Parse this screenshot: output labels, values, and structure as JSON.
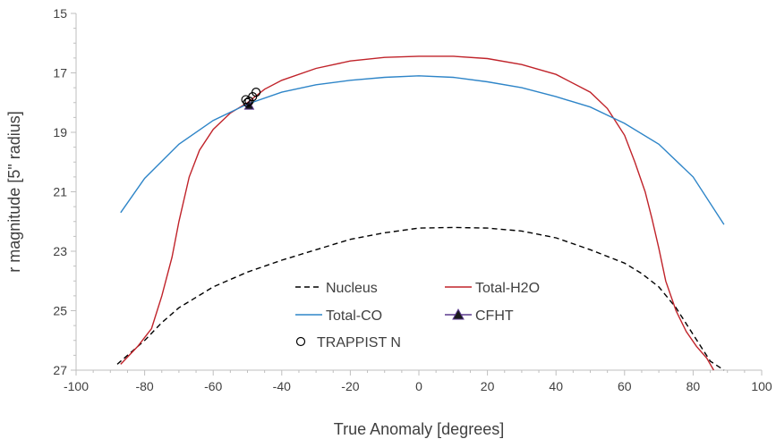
{
  "chart_data": {
    "type": "line",
    "title": "",
    "xlabel": "True Anomaly [degrees]",
    "ylabel": "r magnitude [5\" radius]",
    "xlim": [
      -100,
      100
    ],
    "ylim": [
      15,
      27
    ],
    "y_inverted": true,
    "xticks": [
      -100,
      -80,
      -60,
      -40,
      -20,
      0,
      20,
      40,
      60,
      80,
      100
    ],
    "yticks": [
      15,
      17,
      19,
      21,
      23,
      25,
      27
    ],
    "grid": false,
    "legend_position": "inside-bottom-center",
    "series": [
      {
        "name": "Nucleus",
        "style": "dashed",
        "color": "#000000",
        "x": [
          -88,
          -80,
          -75,
          -70,
          -60,
          -50,
          -40,
          -30,
          -20,
          -10,
          0,
          10,
          20,
          30,
          40,
          50,
          60,
          65,
          70,
          75,
          80,
          85,
          89
        ],
        "y": [
          26.8,
          26.0,
          25.4,
          24.9,
          24.2,
          23.7,
          23.3,
          22.95,
          22.6,
          22.38,
          22.22,
          22.2,
          22.22,
          22.32,
          22.55,
          22.95,
          23.4,
          23.75,
          24.2,
          24.9,
          25.8,
          26.7,
          27.0
        ]
      },
      {
        "name": "Total-H2O",
        "style": "solid",
        "color": "#c0232a",
        "x": [
          -87,
          -82,
          -78,
          -75,
          -72,
          -70,
          -67,
          -64,
          -60,
          -55,
          -50,
          -45,
          -40,
          -30,
          -20,
          -10,
          0,
          10,
          20,
          30,
          40,
          50,
          55,
          60,
          63,
          66,
          68,
          70,
          72,
          75,
          78,
          81,
          84,
          86
        ],
        "y": [
          26.8,
          26.2,
          25.6,
          24.5,
          23.2,
          22.0,
          20.5,
          19.6,
          18.9,
          18.35,
          18.0,
          17.55,
          17.25,
          16.85,
          16.6,
          16.48,
          16.44,
          16.44,
          16.52,
          16.72,
          17.05,
          17.65,
          18.2,
          19.1,
          20.0,
          21.0,
          21.9,
          22.9,
          24.0,
          25.0,
          25.7,
          26.2,
          26.6,
          27.0
        ]
      },
      {
        "name": "Total-CO",
        "style": "solid",
        "color": "#2e85c8",
        "x": [
          -87,
          -80,
          -70,
          -60,
          -50,
          -40,
          -30,
          -20,
          -10,
          0,
          10,
          20,
          30,
          40,
          50,
          60,
          70,
          80,
          89
        ],
        "y": [
          21.7,
          20.55,
          19.4,
          18.6,
          18.05,
          17.65,
          17.4,
          17.25,
          17.15,
          17.1,
          17.15,
          17.3,
          17.5,
          17.8,
          18.15,
          18.7,
          19.4,
          20.5,
          22.1
        ]
      },
      {
        "name": "CFHT",
        "style": "marker",
        "marker": "triangle",
        "color": "#5b3a8e",
        "x": [
          -49.5
        ],
        "y": [
          18.1
        ]
      },
      {
        "name": "TRAPPIST N",
        "style": "marker",
        "marker": "open-circle",
        "color": "#000000",
        "x": [
          -50.5,
          -49.5,
          -48.5,
          -47.5,
          -50.0
        ],
        "y": [
          17.9,
          17.95,
          17.8,
          17.65,
          18.0
        ]
      }
    ],
    "legend": [
      {
        "name": "Nucleus",
        "style": "dashed",
        "color": "#000000"
      },
      {
        "name": "Total-H2O",
        "style": "solid",
        "color": "#c0232a"
      },
      {
        "name": "Total-CO",
        "style": "solid",
        "color": "#2e85c8"
      },
      {
        "name": "CFHT",
        "style": "line-triangle",
        "color": "#5b3a8e"
      },
      {
        "name": "TRAPPIST N",
        "style": "open-circle",
        "color": "#000000"
      }
    ]
  }
}
